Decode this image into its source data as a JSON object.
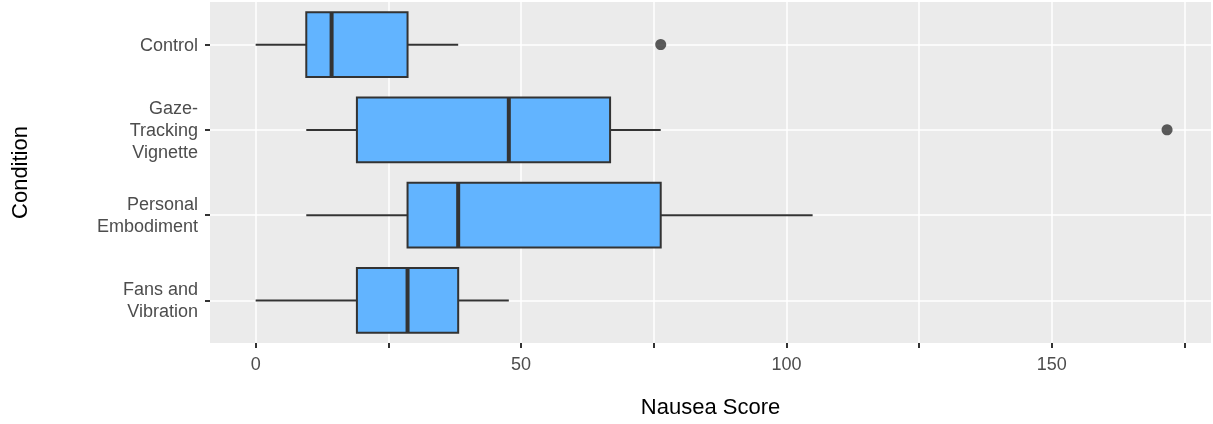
{
  "chart_data": {
    "type": "box",
    "orientation": "horizontal",
    "xlabel": "Nausea Score",
    "ylabel": "Condition",
    "categories": [
      "Control",
      "Gaze-\nTracking\nVignette",
      "Personal\nEmbodiment",
      "Fans and\nVibration"
    ],
    "color": "#62b4ff",
    "boxes": [
      {
        "low": 0,
        "q1": 9.54,
        "median": 14.31,
        "q3": 28.62,
        "high": 38.16,
        "outliers": [
          76.32
        ]
      },
      {
        "low": 9.54,
        "q1": 19.08,
        "median": 47.7,
        "q3": 66.78,
        "high": 76.32,
        "outliers": [
          171.72
        ]
      },
      {
        "low": 9.54,
        "q1": 28.62,
        "median": 38.16,
        "q3": 76.32,
        "high": 104.94
      },
      {
        "low": 0,
        "q1": 19.08,
        "median": 28.62,
        "q3": 38.16,
        "high": 47.7
      }
    ],
    "xlim": [
      -8.6,
      180
    ],
    "xticks": [
      0,
      {
        "value": 25,
        "label": null
      },
      50,
      {
        "value": 75,
        "label": null
      },
      100,
      {
        "value": 125,
        "label": null
      },
      150,
      {
        "value": 175,
        "label": null
      }
    ],
    "grid": true
  }
}
